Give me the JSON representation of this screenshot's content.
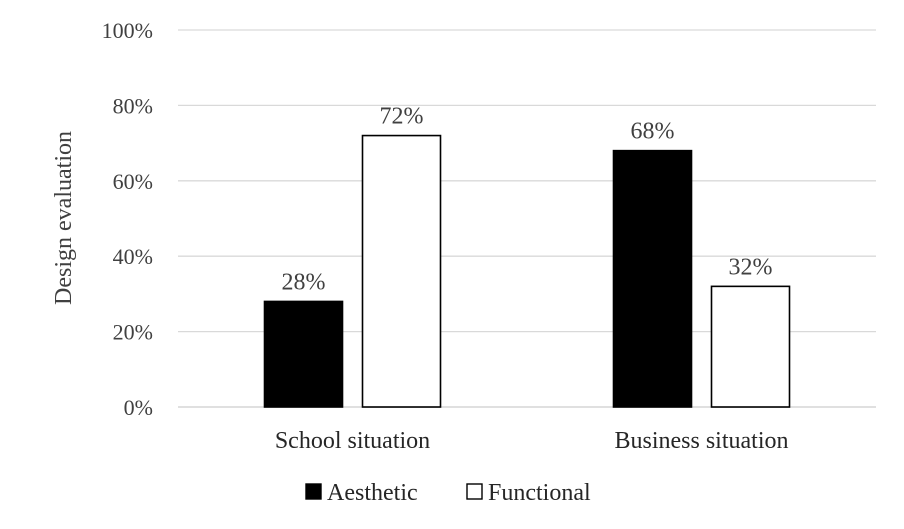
{
  "chart_data": {
    "type": "bar",
    "ylabel": "Design evaluation",
    "categories": [
      "School situation",
      "Business situation"
    ],
    "ylim": [
      0,
      100
    ],
    "yticks": [
      "0%",
      "20%",
      "40%",
      "60%",
      "80%",
      "100%"
    ],
    "ytick_values": [
      0,
      20,
      40,
      60,
      80,
      100
    ],
    "grid": true,
    "legend": "bottom",
    "series": [
      {
        "name": "Aesthetic",
        "values": [
          28,
          68
        ],
        "labels": [
          "28%",
          "68%"
        ],
        "color": "#000000"
      },
      {
        "name": "Functional",
        "values": [
          72,
          32
        ],
        "labels": [
          "72%",
          "32%"
        ],
        "color": "#ffffff"
      }
    ]
  }
}
